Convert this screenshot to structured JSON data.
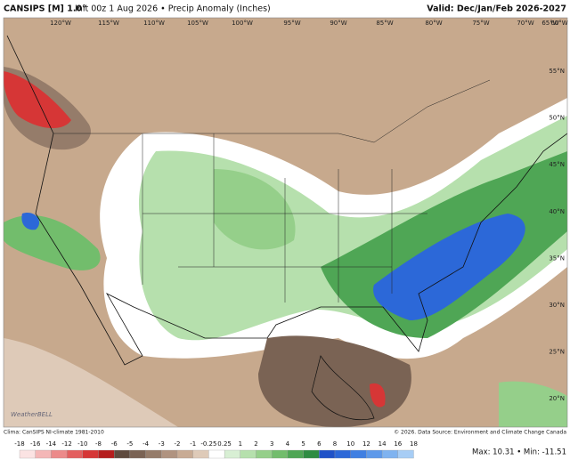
{
  "header": {
    "title_model": "CANSIPS [M] 1.0°",
    "title_rest": "Init 00z 1 Aug 2026 • Precip Anomaly (Inches)",
    "valid": "Valid: Dec/Jan/Feb 2026-2027"
  },
  "map": {
    "lon_labels": [
      "120°W",
      "115°W",
      "110°W",
      "105°W",
      "100°W",
      "95°W",
      "90°W",
      "85°W",
      "80°W",
      "75°W",
      "70°W",
      "65°W",
      "60°W"
    ],
    "lat_labels": [
      "55°N",
      "50°N",
      "45°N",
      "40°N",
      "35°N",
      "30°N",
      "25°N",
      "20°N"
    ],
    "watermark": "WeatherBELL"
  },
  "footer": {
    "clima": "Clima: CanSIPS NI-climate 1981-2010",
    "source": "© 2026. Data Source: Environment and Climate Change Canada",
    "maxmin": "Max: 10.31 • Min: -11.51"
  },
  "colorbar": {
    "ticks": [
      -18,
      -16,
      -14,
      -12,
      -10,
      -8,
      -6,
      -5,
      -4,
      -3,
      -2,
      -1,
      -0.25,
      0.25,
      1,
      2,
      3,
      4,
      5,
      6,
      8,
      10,
      12,
      14,
      16,
      18
    ],
    "colors": [
      "#fbe3e3",
      "#f4b7b7",
      "#ec8a8a",
      "#e35f5f",
      "#d63636",
      "#b51d1d",
      "#5e4a3e",
      "#7a6354",
      "#957c6a",
      "#b09380",
      "#c8ab94",
      "#decab8",
      "#ffffff",
      "#d8efd4",
      "#b6e0ad",
      "#95cf8a",
      "#72bd6c",
      "#4fa655",
      "#2f8c43",
      "#1f52c8",
      "#2c68d8",
      "#3f7fe2",
      "#5d99ea",
      "#7fb3f0",
      "#a7cdf5"
    ]
  }
}
